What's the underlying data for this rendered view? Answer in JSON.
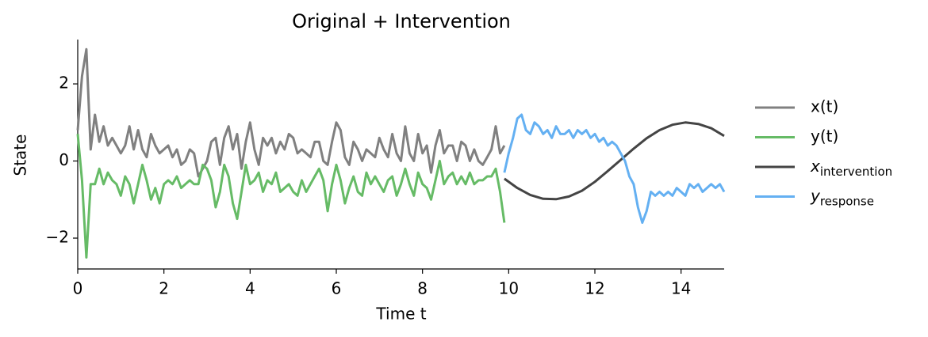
{
  "chart_data": {
    "type": "line",
    "title": "Original + Intervention",
    "xlabel": "Time t",
    "ylabel": "State",
    "xlim": [
      0,
      15
    ],
    "ylim": [
      -2.8,
      3.15
    ],
    "xticks": [
      0,
      2,
      4,
      6,
      8,
      10,
      12,
      14
    ],
    "yticks": [
      {
        "value": -2,
        "label": "−2"
      },
      0,
      2
    ],
    "grid": false,
    "legend": "outside right",
    "series": [
      {
        "name": "x(t)",
        "color": "#808080",
        "x": [
          0,
          0.1,
          0.2,
          0.3,
          0.4,
          0.5,
          0.6,
          0.7,
          0.8,
          0.9,
          1,
          1.1,
          1.2,
          1.3,
          1.4,
          1.5,
          1.6,
          1.7,
          1.8,
          1.9,
          2,
          2.1,
          2.2,
          2.3,
          2.4,
          2.5,
          2.6,
          2.7,
          2.8,
          2.9,
          3,
          3.1,
          3.2,
          3.3,
          3.4,
          3.5,
          3.6,
          3.7,
          3.8,
          3.9,
          4,
          4.1,
          4.2,
          4.3,
          4.4,
          4.5,
          4.6,
          4.7,
          4.8,
          4.9,
          5,
          5.1,
          5.2,
          5.3,
          5.4,
          5.5,
          5.6,
          5.7,
          5.8,
          5.9,
          6,
          6.1,
          6.2,
          6.3,
          6.4,
          6.5,
          6.6,
          6.7,
          6.8,
          6.9,
          7,
          7.1,
          7.2,
          7.3,
          7.4,
          7.5,
          7.6,
          7.7,
          7.8,
          7.9,
          8,
          8.1,
          8.2,
          8.3,
          8.4,
          8.5,
          8.6,
          8.7,
          8.8,
          8.9,
          9,
          9.1,
          9.2,
          9.3,
          9.4,
          9.5,
          9.6,
          9.7,
          9.8,
          9.9
        ],
        "values": [
          0.8,
          2.2,
          2.9,
          0.3,
          1.2,
          0.5,
          0.9,
          0.4,
          0.6,
          0.4,
          0.2,
          0.4,
          0.9,
          0.3,
          0.8,
          0.3,
          0.1,
          0.7,
          0.4,
          0.2,
          0.3,
          0.4,
          0.1,
          0.3,
          -0.1,
          0.0,
          0.3,
          0.2,
          -0.4,
          -0.2,
          0.0,
          0.5,
          0.6,
          -0.1,
          0.6,
          0.9,
          0.3,
          0.7,
          -0.2,
          0.5,
          1.0,
          0.3,
          -0.1,
          0.6,
          0.4,
          0.6,
          0.2,
          0.5,
          0.3,
          0.7,
          0.6,
          0.2,
          0.3,
          0.2,
          0.1,
          0.5,
          0.5,
          0.0,
          -0.1,
          0.5,
          1.0,
          0.8,
          0.1,
          -0.1,
          0.5,
          0.3,
          0.0,
          0.3,
          0.2,
          0.1,
          0.6,
          0.3,
          0.1,
          0.7,
          0.2,
          0.0,
          0.9,
          0.2,
          0.0,
          0.7,
          0.2,
          0.4,
          -0.3,
          0.4,
          0.8,
          0.2,
          0.4,
          0.4,
          0.0,
          0.5,
          0.4,
          0.0,
          0.3,
          0.0,
          -0.1,
          0.1,
          0.3,
          0.9,
          0.2,
          0.4
        ]
      },
      {
        "name": "y(t)",
        "color": "#66bb66",
        "x": [
          0,
          0.1,
          0.2,
          0.3,
          0.4,
          0.5,
          0.6,
          0.7,
          0.8,
          0.9,
          1,
          1.1,
          1.2,
          1.3,
          1.4,
          1.5,
          1.6,
          1.7,
          1.8,
          1.9,
          2,
          2.1,
          2.2,
          2.3,
          2.4,
          2.5,
          2.6,
          2.7,
          2.8,
          2.9,
          3,
          3.1,
          3.2,
          3.3,
          3.4,
          3.5,
          3.6,
          3.7,
          3.8,
          3.9,
          4,
          4.1,
          4.2,
          4.3,
          4.4,
          4.5,
          4.6,
          4.7,
          4.8,
          4.9,
          5,
          5.1,
          5.2,
          5.3,
          5.4,
          5.5,
          5.6,
          5.7,
          5.8,
          5.9,
          6,
          6.1,
          6.2,
          6.3,
          6.4,
          6.5,
          6.6,
          6.7,
          6.8,
          6.9,
          7,
          7.1,
          7.2,
          7.3,
          7.4,
          7.5,
          7.6,
          7.7,
          7.8,
          7.9,
          8,
          8.1,
          8.2,
          8.3,
          8.4,
          8.5,
          8.6,
          8.7,
          8.8,
          8.9,
          9,
          9.1,
          9.2,
          9.3,
          9.4,
          9.5,
          9.6,
          9.7,
          9.8,
          9.9
        ],
        "values": [
          0.7,
          -0.5,
          -2.5,
          -0.6,
          -0.6,
          -0.2,
          -0.6,
          -0.3,
          -0.5,
          -0.6,
          -0.9,
          -0.4,
          -0.6,
          -1.1,
          -0.6,
          -0.1,
          -0.5,
          -1.0,
          -0.7,
          -1.1,
          -0.6,
          -0.5,
          -0.6,
          -0.4,
          -0.7,
          -0.6,
          -0.5,
          -0.6,
          -0.6,
          -0.1,
          -0.2,
          -0.5,
          -1.2,
          -0.8,
          -0.1,
          -0.4,
          -1.1,
          -1.5,
          -0.8,
          -0.1,
          -0.6,
          -0.5,
          -0.3,
          -0.8,
          -0.5,
          -0.6,
          -0.3,
          -0.8,
          -0.7,
          -0.6,
          -0.8,
          -0.9,
          -0.5,
          -0.8,
          -0.6,
          -0.4,
          -0.2,
          -0.5,
          -1.3,
          -0.6,
          -0.1,
          -0.5,
          -1.1,
          -0.7,
          -0.4,
          -0.8,
          -0.9,
          -0.3,
          -0.6,
          -0.4,
          -0.6,
          -0.8,
          -0.5,
          -0.4,
          -0.9,
          -0.6,
          -0.2,
          -0.6,
          -0.9,
          -0.3,
          -0.6,
          -0.7,
          -1.0,
          -0.5,
          0.0,
          -0.6,
          -0.4,
          -0.3,
          -0.6,
          -0.4,
          -0.6,
          -0.3,
          -0.6,
          -0.5,
          -0.5,
          -0.4,
          -0.4,
          -0.2,
          -0.8,
          -1.6
        ]
      },
      {
        "name": "x",
        "name_subscript": "intervention",
        "color": "#444444",
        "x": [
          9.9,
          10.2,
          10.5,
          10.8,
          11.1,
          11.4,
          11.7,
          12,
          12.3,
          12.6,
          12.9,
          13.2,
          13.5,
          13.8,
          14.1,
          14.4,
          14.7,
          15
        ],
        "values": [
          -0.46,
          -0.7,
          -0.88,
          -0.98,
          -0.99,
          -0.92,
          -0.77,
          -0.54,
          -0.26,
          0.03,
          0.32,
          0.59,
          0.8,
          0.94,
          1.0,
          0.96,
          0.85,
          0.65
        ]
      },
      {
        "name": "y",
        "name_subscript": "response",
        "color": "#64b0f2",
        "x": [
          9.9,
          10,
          10.1,
          10.2,
          10.3,
          10.4,
          10.5,
          10.6,
          10.7,
          10.8,
          10.9,
          11,
          11.1,
          11.2,
          11.3,
          11.4,
          11.5,
          11.6,
          11.7,
          11.8,
          11.9,
          12,
          12.1,
          12.2,
          12.3,
          12.4,
          12.5,
          12.6,
          12.7,
          12.8,
          12.9,
          13,
          13.1,
          13.2,
          13.3,
          13.4,
          13.5,
          13.6,
          13.7,
          13.8,
          13.9,
          14,
          14.1,
          14.2,
          14.3,
          14.4,
          14.5,
          14.6,
          14.7,
          14.8,
          14.9,
          15
        ],
        "values": [
          -0.3,
          0.2,
          0.6,
          1.1,
          1.2,
          0.8,
          0.7,
          1.0,
          0.9,
          0.7,
          0.8,
          0.6,
          0.9,
          0.7,
          0.7,
          0.8,
          0.6,
          0.8,
          0.7,
          0.8,
          0.6,
          0.7,
          0.5,
          0.6,
          0.4,
          0.5,
          0.4,
          0.2,
          0.0,
          -0.4,
          -0.6,
          -1.2,
          -1.6,
          -1.3,
          -0.8,
          -0.9,
          -0.8,
          -0.9,
          -0.8,
          -0.9,
          -0.7,
          -0.8,
          -0.9,
          -0.6,
          -0.7,
          -0.6,
          -0.8,
          -0.7,
          -0.6,
          -0.7,
          -0.6,
          -0.8
        ]
      }
    ]
  }
}
